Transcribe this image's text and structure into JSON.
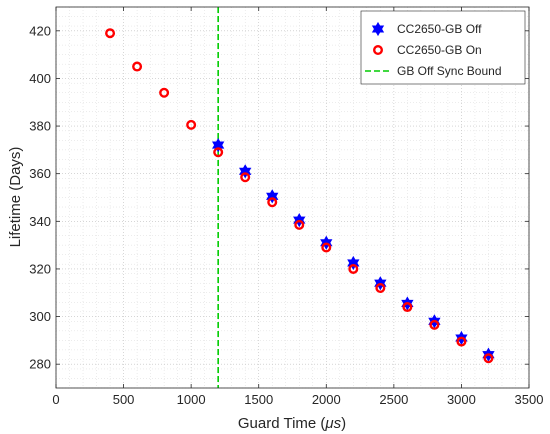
{
  "chart_data": {
    "type": "scatter",
    "xlabel_main": "Guard Time (",
    "xlabel_unit": "μs",
    "xlabel_close": ")",
    "ylabel": "Lifetime (Days)",
    "xlim": [
      0,
      3500
    ],
    "ylim": [
      270,
      430
    ],
    "x_ticks": [
      0,
      500,
      1000,
      1500,
      2000,
      2500,
      3000,
      3500
    ],
    "y_ticks": [
      280,
      300,
      320,
      340,
      360,
      380,
      400,
      420
    ],
    "grid": true,
    "minor_grid": true,
    "legend_position": "top-right",
    "series": [
      {
        "name": "CC2650-GB Off",
        "marker": "hexagram",
        "color": "#0000ff",
        "x": [
          1200,
          1400,
          1600,
          1800,
          2000,
          2200,
          2400,
          2600,
          2800,
          3000,
          3200
        ],
        "y": [
          372,
          361,
          350.5,
          340.5,
          331,
          322.5,
          314,
          305.5,
          298,
          291,
          284
        ]
      },
      {
        "name": "CC2650-GB On",
        "marker": "circle",
        "color": "#ff0000",
        "x": [
          400,
          600,
          800,
          1000,
          1200,
          1400,
          1600,
          1800,
          2000,
          2200,
          2400,
          2600,
          2800,
          3000,
          3200
        ],
        "y": [
          419,
          405,
          394,
          380.5,
          369,
          358.5,
          348,
          338.5,
          329,
          320,
          312,
          304,
          296.5,
          289.5,
          282.5
        ]
      },
      {
        "name": "GB Off Sync Bound",
        "marker": "vline",
        "color": "#00cc00",
        "x": [
          1200
        ]
      }
    ]
  }
}
